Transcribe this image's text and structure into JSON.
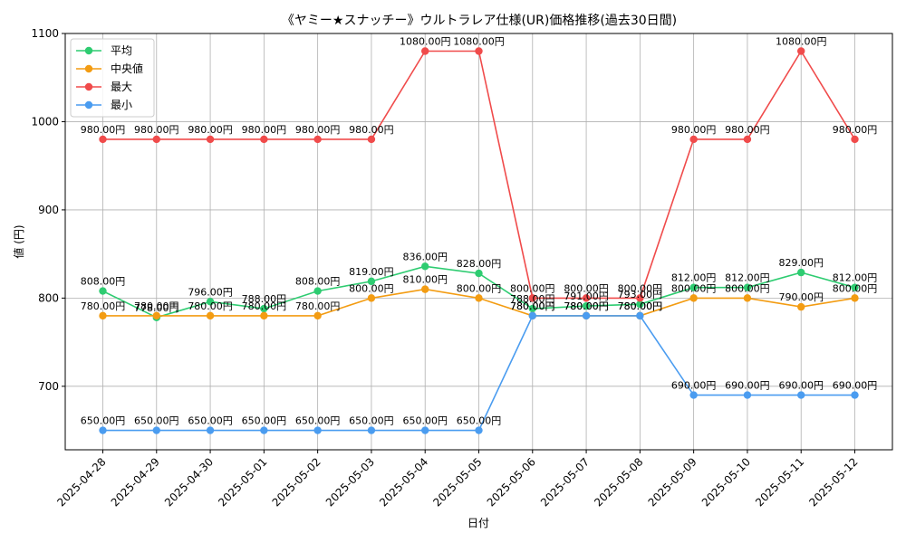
{
  "chart_data": {
    "type": "line",
    "title": "《ヤミー★スナッチー》ウルトラレア仕様(UR)価格推移(過去30日間)",
    "xlabel": "日付",
    "ylabel": "値 (円)",
    "ylim": [
      628,
      1100
    ],
    "yticks": [
      700,
      800,
      900,
      1000,
      1100
    ],
    "grid": true,
    "legend_position": "top-left",
    "x": [
      "2025-04-28",
      "2025-04-29",
      "2025-04-30",
      "2025-05-01",
      "2025-05-02",
      "2025-05-03",
      "2025-05-04",
      "2025-05-05",
      "2025-05-06",
      "2025-05-07",
      "2025-05-08",
      "2025-05-09",
      "2025-05-10",
      "2025-05-11",
      "2025-05-12"
    ],
    "series": [
      {
        "name": "平均",
        "color": "#2ecc71",
        "values": [
          808,
          778,
          796,
          788,
          808,
          819,
          836,
          828,
          788,
          791,
          793,
          812,
          812,
          829,
          812
        ],
        "labels": [
          "808.00円",
          "778.00円",
          "796.00円",
          "788.00円",
          "808.00円",
          "819.00円",
          "836.00円",
          "828.00円",
          "788.00円",
          "791.00円",
          "793.00円",
          "812.00円",
          "812.00円",
          "829.00円",
          "812.00円"
        ]
      },
      {
        "name": "中央値",
        "color": "#f39c12",
        "values": [
          780,
          780,
          780,
          780,
          780,
          800,
          810,
          800,
          780,
          780,
          780,
          800,
          800,
          790,
          800
        ],
        "labels": [
          "780.00円",
          "780.00円",
          "780.00円",
          "780.00円",
          "780.00円",
          "800.00円",
          "810.00円",
          "800.00円",
          "780.00円",
          "780.00円",
          "780.00円",
          "800.00円",
          "800.00円",
          "790.00円",
          "800.00円"
        ]
      },
      {
        "name": "最大",
        "color": "#f04b4b",
        "values": [
          980,
          980,
          980,
          980,
          980,
          980,
          1080,
          1080,
          800,
          800,
          800,
          980,
          980,
          1080,
          980
        ],
        "labels": [
          "980.00円",
          "980.00円",
          "980.00円",
          "980.00円",
          "980.00円",
          "980.00円",
          "1080.00円",
          "1080.00円",
          "800.00円",
          "800.00円",
          "800.00円",
          "980.00円",
          "980.00円",
          "1080.00円",
          "980.00円"
        ]
      },
      {
        "name": "最小",
        "color": "#4a9cf0",
        "values": [
          650,
          650,
          650,
          650,
          650,
          650,
          650,
          650,
          780,
          780,
          780,
          690,
          690,
          690,
          690
        ],
        "labels": [
          "650.00円",
          "650.00円",
          "650.00円",
          "650.00円",
          "650.00円",
          "650.00円",
          "650.00円",
          "650.00円",
          "780.00円",
          "780.00円",
          "780.00円",
          "690.00円",
          "690.00円",
          "690.00円",
          "690.00円"
        ]
      }
    ]
  }
}
